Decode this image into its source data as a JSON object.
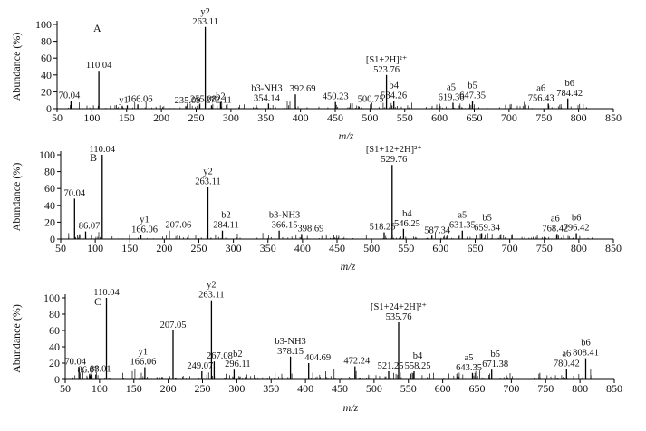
{
  "chart_data": [
    {
      "type": "bar",
      "panel_letter": "A",
      "ylabel": "Abundance (%)",
      "xlabel": "m/z",
      "xlim": [
        50,
        850
      ],
      "ylim": [
        0,
        100
      ],
      "xticks": [
        50,
        100,
        150,
        200,
        250,
        300,
        350,
        400,
        450,
        500,
        550,
        600,
        650,
        700,
        750,
        800,
        850
      ],
      "yticks": [
        0,
        20,
        40,
        60,
        80,
        100
      ],
      "peaks": [
        {
          "mz": 70.04,
          "y": 9,
          "label": "70.04"
        },
        {
          "mz": 110.04,
          "y": 45,
          "label": "110.04"
        },
        {
          "mz": 151,
          "y": 4,
          "ion": "y1"
        },
        {
          "mz": 166.06,
          "y": 5,
          "label": "166.06"
        },
        {
          "mz": 235.09,
          "y": 3,
          "label": "235.09"
        },
        {
          "mz": 255.08,
          "y": 5,
          "label": "255.08"
        },
        {
          "mz": 263.11,
          "y": 97,
          "label": "263.11",
          "ion": "y2"
        },
        {
          "mz": 272.11,
          "y": 4,
          "label": "272.11"
        },
        {
          "mz": 285,
          "y": 8,
          "ion": "b2"
        },
        {
          "mz": 354.14,
          "y": 6,
          "label": "354.14",
          "ion": "b3-NH3"
        },
        {
          "mz": 392.69,
          "y": 17,
          "label": "392.69"
        },
        {
          "mz": 450.23,
          "y": 8,
          "label": "450.23"
        },
        {
          "mz": 500.75,
          "y": 5,
          "label": "500.75"
        },
        {
          "mz": 523.76,
          "y": 40,
          "label": "523.76",
          "ion": "[S1+2H]²⁺"
        },
        {
          "mz": 534.26,
          "y": 9,
          "label": "534.26",
          "ion": "b4"
        },
        {
          "mz": 619.36,
          "y": 7,
          "label": "619.36",
          "ion": "a5"
        },
        {
          "mz": 647.35,
          "y": 9,
          "label": "647.35",
          "ion": "b5"
        },
        {
          "mz": 756.43,
          "y": 6,
          "label": "756.43",
          "ion": "a6"
        },
        {
          "mz": 784.42,
          "y": 12,
          "label": "784.42",
          "ion": "b6"
        }
      ]
    },
    {
      "type": "bar",
      "panel_letter": "B",
      "ylabel": "Abundance (%)",
      "xlabel": "m/z",
      "xlim": [
        50,
        850
      ],
      "ylim": [
        0,
        100
      ],
      "xticks": [
        50,
        100,
        150,
        200,
        250,
        300,
        350,
        400,
        450,
        500,
        550,
        600,
        650,
        700,
        750,
        800,
        850
      ],
      "yticks": [
        0,
        20,
        40,
        60,
        80,
        100
      ],
      "peaks": [
        {
          "mz": 70.04,
          "y": 48,
          "label": "70.04"
        },
        {
          "mz": 86.07,
          "y": 9,
          "label": "86.07"
        },
        {
          "mz": 110.04,
          "y": 100,
          "label": "110.04"
        },
        {
          "mz": 166.06,
          "y": 5,
          "label": "166.06",
          "ion": "y1"
        },
        {
          "mz": 207.06,
          "y": 10,
          "label": "207.06"
        },
        {
          "mz": 263.11,
          "y": 62,
          "label": "263.11",
          "ion": "y2"
        },
        {
          "mz": 284.11,
          "y": 10,
          "label": "284.11",
          "ion": "b2"
        },
        {
          "mz": 366.15,
          "y": 10,
          "label": "366.15",
          "ion": "b3-NH3"
        },
        {
          "mz": 398.69,
          "y": 6,
          "label": "398.69"
        },
        {
          "mz": 518.25,
          "y": 8,
          "label": "518.25"
        },
        {
          "mz": 529.76,
          "y": 88,
          "label": "529.76",
          "ion": "[S1+12+2H]²⁺"
        },
        {
          "mz": 546.25,
          "y": 12,
          "label": "546.25",
          "ion": "b4"
        },
        {
          "mz": 587.34,
          "y": 4,
          "label": "587.34"
        },
        {
          "mz": 631.35,
          "y": 10,
          "label": "631.35",
          "ion": "a5"
        },
        {
          "mz": 659.34,
          "y": 7,
          "label": "659.34",
          "ion": "b5"
        },
        {
          "mz": 768.42,
          "y": 6,
          "label": "768.42",
          "ion": "a6"
        },
        {
          "mz": 796.42,
          "y": 7,
          "label": "796.42",
          "ion": "b6"
        }
      ]
    },
    {
      "type": "bar",
      "panel_letter": "C",
      "ylabel": "Abundance (%)",
      "xlabel": "m/z",
      "xlim": [
        50,
        850
      ],
      "ylim": [
        0,
        100
      ],
      "xticks": [
        50,
        100,
        150,
        200,
        250,
        300,
        350,
        400,
        450,
        500,
        550,
        600,
        650,
        700,
        750,
        800,
        850
      ],
      "yticks": [
        0,
        20,
        40,
        60,
        80,
        100
      ],
      "peaks": [
        {
          "mz": 70.04,
          "y": 15,
          "label": "70.04"
        },
        {
          "mz": 86.07,
          "y": 5,
          "label": "86.07"
        },
        {
          "mz": 88.01,
          "y": 6,
          "label": "88.01"
        },
        {
          "mz": 110.04,
          "y": 100,
          "label": "110.04"
        },
        {
          "mz": 166.06,
          "y": 15,
          "label": "166.06",
          "ion": "y1"
        },
        {
          "mz": 207.05,
          "y": 60,
          "label": "207.05"
        },
        {
          "mz": 249.07,
          "y": 10,
          "label": "249.07"
        },
        {
          "mz": 263.11,
          "y": 97,
          "label": "263.11",
          "ion": "y2"
        },
        {
          "mz": 267.08,
          "y": 22,
          "label": "267.08"
        },
        {
          "mz": 296.11,
          "y": 12,
          "label": "296.11",
          "ion": "b2"
        },
        {
          "mz": 378.15,
          "y": 28,
          "label": "378.15",
          "ion": "b3-NH3"
        },
        {
          "mz": 404.69,
          "y": 20,
          "label": "404.69"
        },
        {
          "mz": 472.24,
          "y": 16,
          "label": "472.24"
        },
        {
          "mz": 521.25,
          "y": 10,
          "label": "521.25"
        },
        {
          "mz": 535.76,
          "y": 70,
          "label": "535.76",
          "ion": "[S1+24+2H]²⁺"
        },
        {
          "mz": 558.25,
          "y": 10,
          "label": "558.25",
          "ion": "b4"
        },
        {
          "mz": 643.35,
          "y": 8,
          "label": "643.35",
          "ion": "a5"
        },
        {
          "mz": 671.38,
          "y": 12,
          "label": "671.38",
          "ion": "b5"
        },
        {
          "mz": 780.42,
          "y": 13,
          "label": "780.42",
          "ion": "a6"
        },
        {
          "mz": 808.41,
          "y": 26,
          "label": "808.41",
          "ion": "b6"
        }
      ]
    }
  ]
}
